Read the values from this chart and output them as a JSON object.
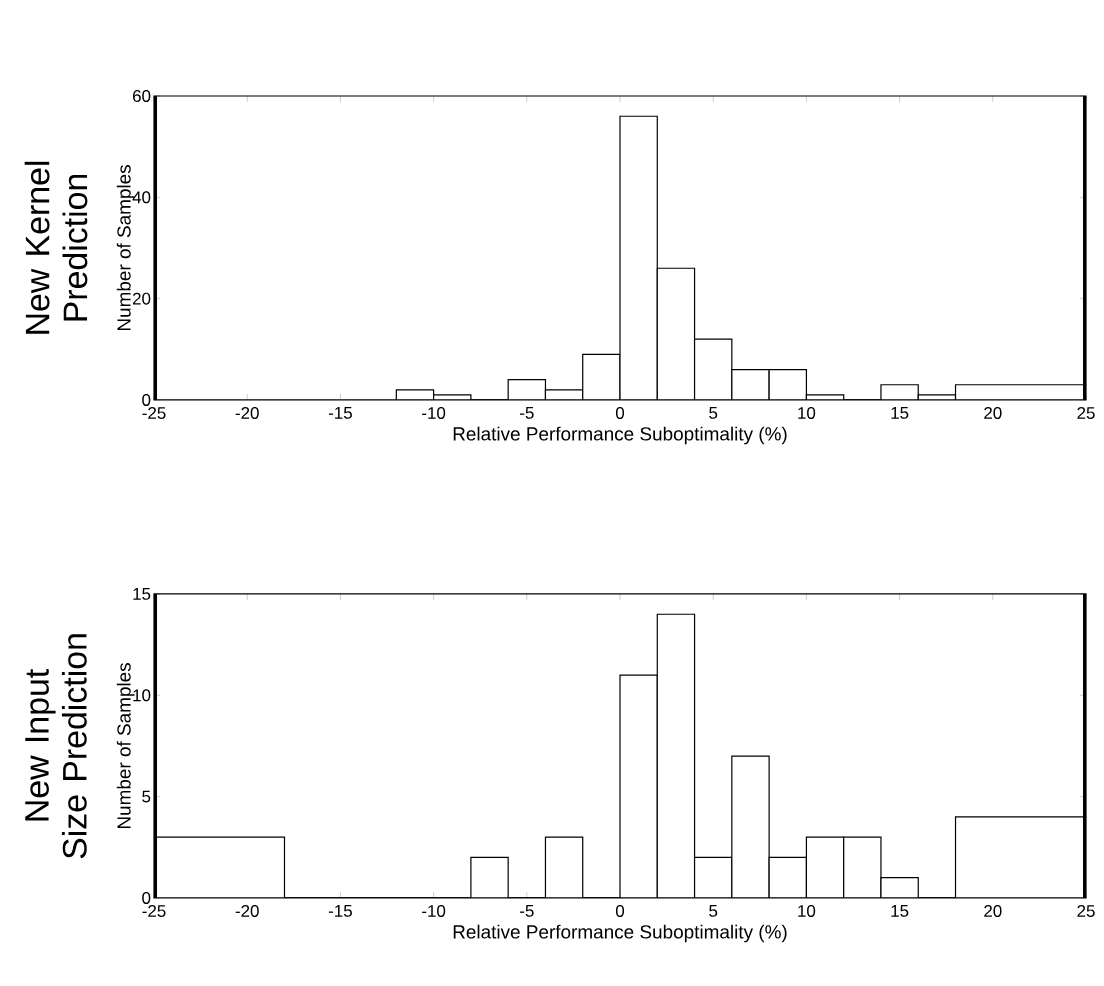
{
  "chart_data": [
    {
      "type": "histogram",
      "title": "New Kernel Prediction",
      "ylabel": "Number of Samples",
      "xlabel": "Relative Performance Suboptimality (%)",
      "bins": [
        -12,
        -10,
        -8,
        -6,
        -4,
        -2,
        0,
        2,
        4,
        6,
        8,
        10,
        12,
        14,
        16,
        18,
        25
      ],
      "values": [
        2,
        1,
        0,
        4,
        2,
        9,
        56,
        26,
        12,
        6,
        6,
        1,
        0,
        3,
        1,
        3
      ],
      "color": "#ffffff",
      "xlim": [
        -25,
        25
      ],
      "xticks": [
        -25,
        -20,
        -15,
        -10,
        -5,
        0,
        5,
        10,
        15,
        20,
        25
      ],
      "ylim": [
        0,
        60
      ],
      "yticks": [
        0,
        20,
        40,
        60
      ]
    },
    {
      "type": "histogram",
      "title": "New Input Size Prediction",
      "ylabel": "Number of Samples",
      "xlabel": "Relative Performance Suboptimality (%)",
      "bins": [
        -25,
        -18,
        -8,
        -6,
        -4,
        -2,
        0,
        2,
        4,
        6,
        8,
        10,
        12,
        14,
        16,
        18,
        25
      ],
      "values": [
        3,
        0,
        2,
        0,
        3,
        0,
        11,
        14,
        2,
        7,
        2,
        3,
        3,
        1,
        0,
        4
      ],
      "color": "#ffffff",
      "xlim": [
        -25,
        25
      ],
      "xticks": [
        -25,
        -20,
        -15,
        -10,
        -5,
        0,
        5,
        10,
        15,
        20,
        25
      ],
      "ylim": [
        0,
        15
      ],
      "yticks": [
        0,
        5,
        10,
        15
      ]
    }
  ]
}
